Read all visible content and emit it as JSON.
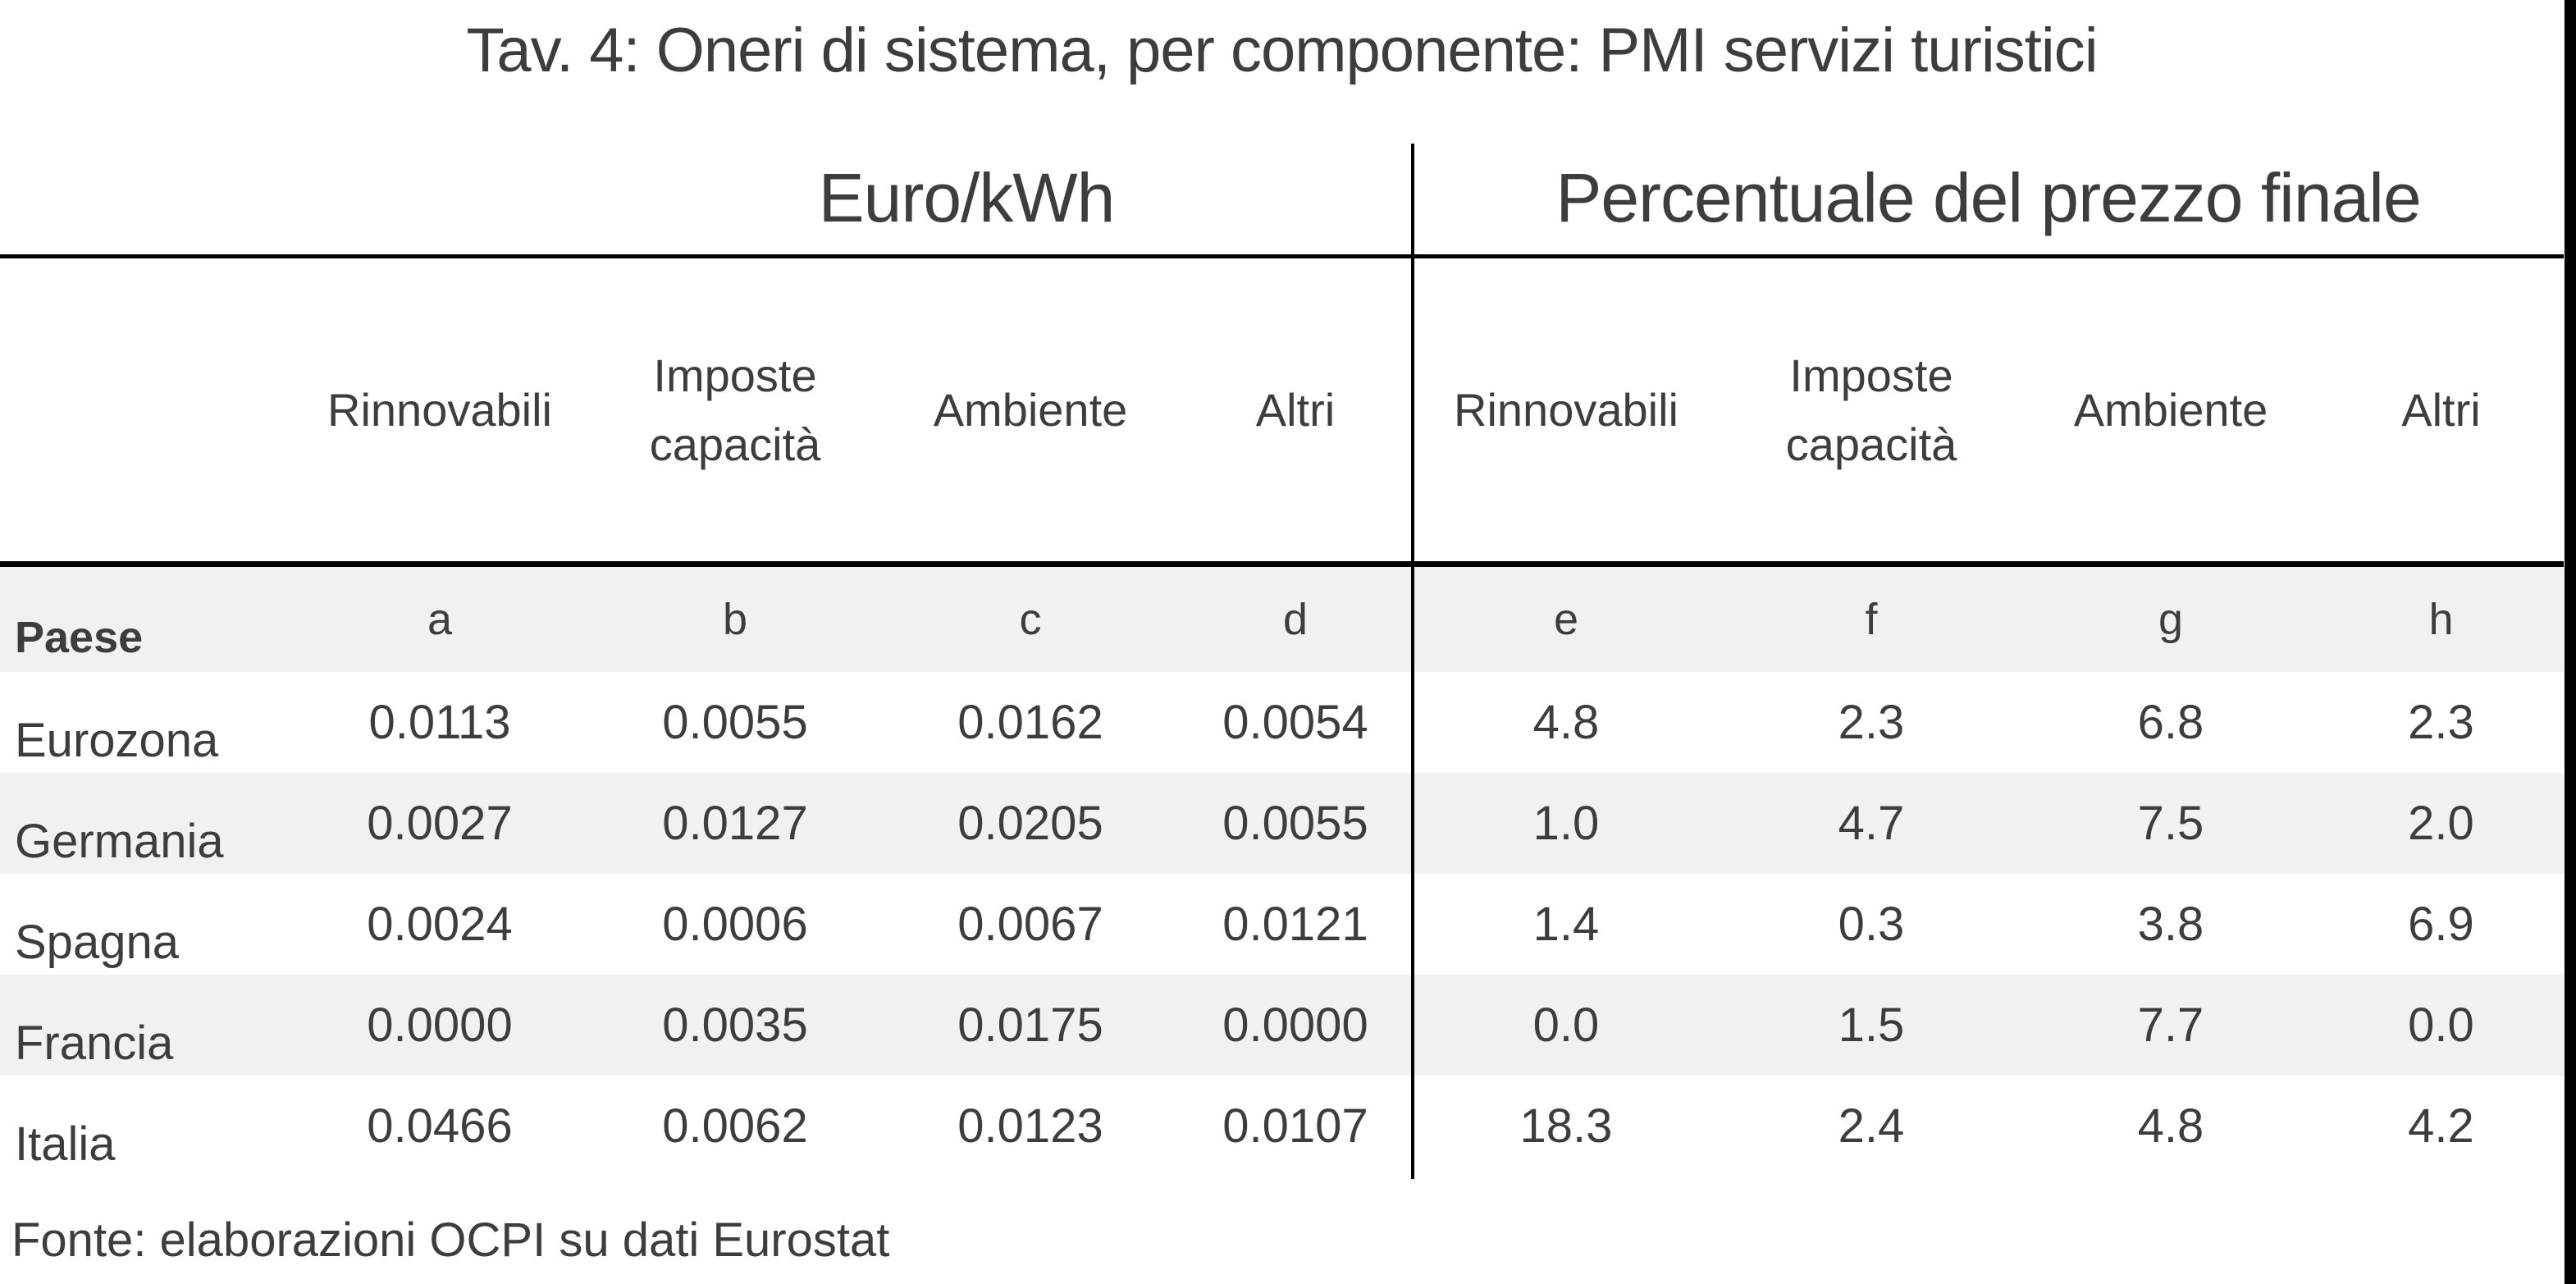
{
  "title": "Tav. 4: Oneri di sistema, per componente: PMI servizi turistici",
  "groups": [
    "Euro/kWh",
    "Percentuale del prezzo finale"
  ],
  "paese_label": "Paese",
  "subheaders": [
    "Rinnovabili",
    "Imposte capacità",
    "Ambiente",
    "Altri",
    "Rinnovabili",
    "Imposte capacità",
    "Ambiente",
    "Altri"
  ],
  "letters": [
    "a",
    "b",
    "c",
    "d",
    "e",
    "f",
    "g",
    "h"
  ],
  "rows": [
    {
      "label": "Eurozona",
      "values": [
        "0.0113",
        "0.0055",
        "0.0162",
        "0.0054",
        "4.8",
        "2.3",
        "6.8",
        "2.3"
      ]
    },
    {
      "label": "Germania",
      "values": [
        "0.0027",
        "0.0127",
        "0.0205",
        "0.0055",
        "1.0",
        "4.7",
        "7.5",
        "2.0"
      ]
    },
    {
      "label": "Spagna",
      "values": [
        "0.0024",
        "0.0006",
        "0.0067",
        "0.0121",
        "1.4",
        "0.3",
        "3.8",
        "6.9"
      ]
    },
    {
      "label": "Francia",
      "values": [
        "0.0000",
        "0.0035",
        "0.0175",
        "0.0000",
        "0.0",
        "1.5",
        "7.7",
        "0.0"
      ]
    },
    {
      "label": "Italia",
      "values": [
        "0.0466",
        "0.0062",
        "0.0123",
        "0.0107",
        "18.3",
        "2.4",
        "4.8",
        "4.2"
      ]
    }
  ],
  "footer": "Fonte: elaborazioni OCPI su dati Eurostat",
  "colors": {
    "text": "#3d3d3d",
    "stripe": "#f1f1f2",
    "rule": "#000000",
    "edge_strip": "#000000",
    "background": "#ffffff"
  },
  "chart_data": {
    "type": "table",
    "title": "Tav. 4: Oneri di sistema, per componente: PMI servizi turistici",
    "index_label": "Paese",
    "column_groups": [
      {
        "label": "Euro/kWh",
        "columns": [
          "Rinnovabili",
          "Imposte capacità",
          "Ambiente",
          "Altri"
        ],
        "column_keys": [
          "a",
          "b",
          "c",
          "d"
        ]
      },
      {
        "label": "Percentuale del prezzo finale",
        "columns": [
          "Rinnovabili",
          "Imposte capacità",
          "Ambiente",
          "Altri"
        ],
        "column_keys": [
          "e",
          "f",
          "g",
          "h"
        ]
      }
    ],
    "rows": [
      {
        "paese": "Eurozona",
        "euro_kwh": [
          0.0113,
          0.0055,
          0.0162,
          0.0054
        ],
        "percentuale": [
          4.8,
          2.3,
          6.8,
          2.3
        ]
      },
      {
        "paese": "Germania",
        "euro_kwh": [
          0.0027,
          0.0127,
          0.0205,
          0.0055
        ],
        "percentuale": [
          1.0,
          4.7,
          7.5,
          2.0
        ]
      },
      {
        "paese": "Spagna",
        "euro_kwh": [
          0.0024,
          0.0006,
          0.0067,
          0.0121
        ],
        "percentuale": [
          1.4,
          0.3,
          3.8,
          6.9
        ]
      },
      {
        "paese": "Francia",
        "euro_kwh": [
          0.0,
          0.0035,
          0.0175,
          0.0
        ],
        "percentuale": [
          0.0,
          1.5,
          7.7,
          0.0
        ]
      },
      {
        "paese": "Italia",
        "euro_kwh": [
          0.0466,
          0.0062,
          0.0123,
          0.0107
        ],
        "percentuale": [
          18.3,
          2.4,
          4.8,
          4.2
        ]
      }
    ],
    "source": "Fonte: elaborazioni OCPI su dati Eurostat",
    "layout": {
      "grid": false,
      "striped_rows": true
    }
  }
}
